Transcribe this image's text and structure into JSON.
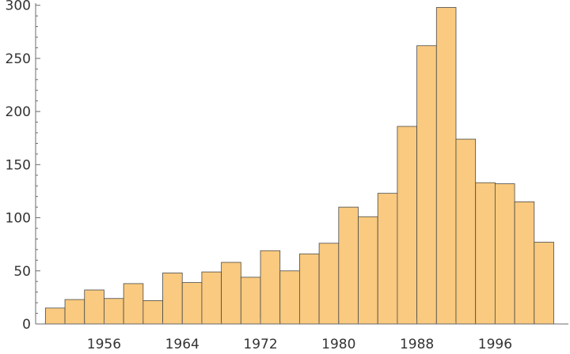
{
  "chart_data": {
    "type": "bar",
    "title": "",
    "xlabel": "",
    "ylabel": "",
    "bin_width": 2,
    "bins": [
      {
        "start": 1950,
        "end": 1952,
        "value": 15
      },
      {
        "start": 1952,
        "end": 1954,
        "value": 23
      },
      {
        "start": 1954,
        "end": 1956,
        "value": 32
      },
      {
        "start": 1956,
        "end": 1958,
        "value": 24
      },
      {
        "start": 1958,
        "end": 1960,
        "value": 38
      },
      {
        "start": 1960,
        "end": 1962,
        "value": 22
      },
      {
        "start": 1962,
        "end": 1964,
        "value": 48
      },
      {
        "start": 1964,
        "end": 1966,
        "value": 39
      },
      {
        "start": 1966,
        "end": 1968,
        "value": 49
      },
      {
        "start": 1968,
        "end": 1970,
        "value": 58
      },
      {
        "start": 1970,
        "end": 1972,
        "value": 44
      },
      {
        "start": 1972,
        "end": 1974,
        "value": 69
      },
      {
        "start": 1974,
        "end": 1976,
        "value": 50
      },
      {
        "start": 1976,
        "end": 1978,
        "value": 66
      },
      {
        "start": 1978,
        "end": 1980,
        "value": 76
      },
      {
        "start": 1980,
        "end": 1982,
        "value": 110
      },
      {
        "start": 1982,
        "end": 1984,
        "value": 101
      },
      {
        "start": 1984,
        "end": 1986,
        "value": 123
      },
      {
        "start": 1986,
        "end": 1988,
        "value": 186
      },
      {
        "start": 1988,
        "end": 1990,
        "value": 262
      },
      {
        "start": 1990,
        "end": 1992,
        "value": 298
      },
      {
        "start": 1992,
        "end": 1994,
        "value": 174
      },
      {
        "start": 1994,
        "end": 1996,
        "value": 133
      },
      {
        "start": 1996,
        "end": 1998,
        "value": 132
      },
      {
        "start": 1998,
        "end": 2000,
        "value": 115
      },
      {
        "start": 2000,
        "end": 2002,
        "value": 77
      }
    ],
    "xlim": [
      1949,
      2003.5
    ],
    "ylim": [
      0,
      302
    ],
    "x_ticks": [
      1956,
      1964,
      1972,
      1980,
      1988,
      1996
    ],
    "x_tick_labels": [
      "1956",
      "1964",
      "1972",
      "1980",
      "1988",
      "1996"
    ],
    "y_ticks": [
      0,
      50,
      100,
      150,
      200,
      250,
      300
    ],
    "y_tick_labels": [
      "0",
      "50",
      "100",
      "150",
      "200",
      "250",
      "300"
    ],
    "grid": false,
    "bar_color": "#f9ca7f",
    "bar_edge_color": "#4a4a4a",
    "axis_color": "#6b6b6b"
  }
}
